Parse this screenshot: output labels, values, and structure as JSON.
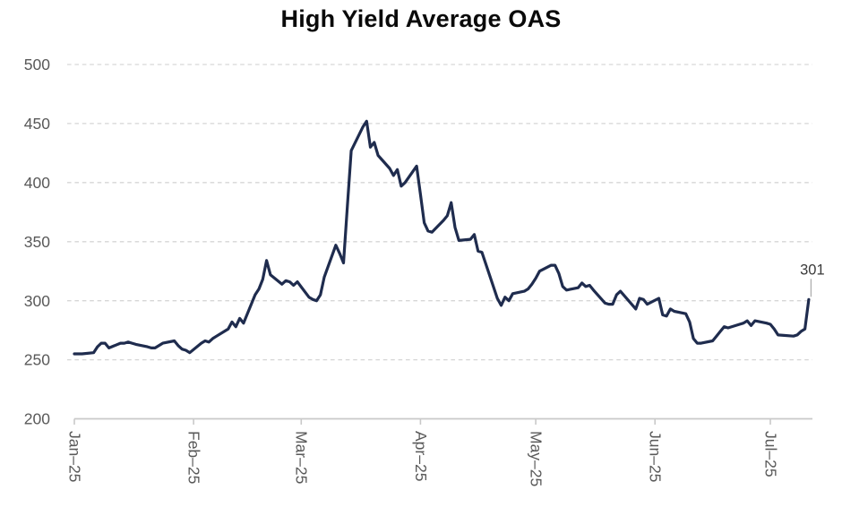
{
  "chart_data": {
    "type": "line",
    "title": "High Yield Average OAS",
    "xlabel": "",
    "ylabel": "",
    "ylim": [
      200,
      500
    ],
    "y_ticks": [
      200,
      250,
      300,
      350,
      400,
      450,
      500
    ],
    "grid": "horizontal-dashed",
    "legend_position": "none",
    "x_ticks": [
      {
        "label": "Jan–25",
        "date": "2025-01-01"
      },
      {
        "label": "Feb–25",
        "date": "2025-02-01"
      },
      {
        "label": "Mar–25",
        "date": "2025-03-01"
      },
      {
        "label": "Apr–25",
        "date": "2025-04-01"
      },
      {
        "label": "May–25",
        "date": "2025-05-01"
      },
      {
        "label": "Jun–25",
        "date": "2025-06-01"
      },
      {
        "label": "Jul–25",
        "date": "2025-07-01"
      }
    ],
    "annotation": {
      "label": "301",
      "date": "2025-07-11",
      "value": 301
    },
    "series": [
      {
        "name": "High Yield Average OAS",
        "dates": [
          "2025-01-01",
          "2025-01-02",
          "2025-01-03",
          "2025-01-06",
          "2025-01-07",
          "2025-01-08",
          "2025-01-09",
          "2025-01-10",
          "2025-01-13",
          "2025-01-14",
          "2025-01-15",
          "2025-01-16",
          "2025-01-17",
          "2025-01-20",
          "2025-01-21",
          "2025-01-22",
          "2025-01-23",
          "2025-01-24",
          "2025-01-27",
          "2025-01-28",
          "2025-01-29",
          "2025-01-30",
          "2025-01-31",
          "2025-02-03",
          "2025-02-04",
          "2025-02-05",
          "2025-02-06",
          "2025-02-07",
          "2025-02-10",
          "2025-02-11",
          "2025-02-12",
          "2025-02-13",
          "2025-02-14",
          "2025-02-17",
          "2025-02-18",
          "2025-02-19",
          "2025-02-20",
          "2025-02-21",
          "2025-02-24",
          "2025-02-25",
          "2025-02-26",
          "2025-02-27",
          "2025-02-28",
          "2025-03-03",
          "2025-03-04",
          "2025-03-05",
          "2025-03-06",
          "2025-03-07",
          "2025-03-10",
          "2025-03-11",
          "2025-03-12",
          "2025-03-13",
          "2025-03-14",
          "2025-03-17",
          "2025-03-18",
          "2025-03-19",
          "2025-03-20",
          "2025-03-21",
          "2025-03-24",
          "2025-03-25",
          "2025-03-26",
          "2025-03-27",
          "2025-03-28",
          "2025-03-31",
          "2025-04-01",
          "2025-04-02",
          "2025-04-03",
          "2025-04-04",
          "2025-04-07",
          "2025-04-08",
          "2025-04-09",
          "2025-04-10",
          "2025-04-11",
          "2025-04-14",
          "2025-04-15",
          "2025-04-16",
          "2025-04-17",
          "2025-04-21",
          "2025-04-22",
          "2025-04-23",
          "2025-04-24",
          "2025-04-25",
          "2025-04-28",
          "2025-04-29",
          "2025-04-30",
          "2025-05-01",
          "2025-05-02",
          "2025-05-05",
          "2025-05-06",
          "2025-05-07",
          "2025-05-08",
          "2025-05-09",
          "2025-05-12",
          "2025-05-13",
          "2025-05-14",
          "2025-05-15",
          "2025-05-16",
          "2025-05-19",
          "2025-05-20",
          "2025-05-21",
          "2025-05-22",
          "2025-05-23",
          "2025-05-27",
          "2025-05-28",
          "2025-05-29",
          "2025-05-30",
          "2025-06-02",
          "2025-06-03",
          "2025-06-04",
          "2025-06-05",
          "2025-06-06",
          "2025-06-09",
          "2025-06-10",
          "2025-06-11",
          "2025-06-12",
          "2025-06-13",
          "2025-06-16",
          "2025-06-17",
          "2025-06-18",
          "2025-06-19",
          "2025-06-20",
          "2025-06-23",
          "2025-06-24",
          "2025-06-25",
          "2025-06-26",
          "2025-06-27",
          "2025-06-30",
          "2025-07-01",
          "2025-07-02",
          "2025-07-03",
          "2025-07-07",
          "2025-07-08",
          "2025-07-09",
          "2025-07-10",
          "2025-07-11"
        ],
        "values": [
          255,
          255,
          255,
          256,
          261,
          264,
          264,
          260,
          264,
          264,
          265,
          264,
          263,
          261,
          260,
          260,
          262,
          264,
          266,
          262,
          259,
          258,
          256,
          264,
          266,
          265,
          268,
          270,
          276,
          282,
          278,
          285,
          281,
          305,
          310,
          318,
          334,
          322,
          314,
          317,
          316,
          313,
          316,
          303,
          301,
          300,
          305,
          320,
          347,
          340,
          332,
          380,
          427,
          447,
          452,
          430,
          434,
          423,
          412,
          406,
          411,
          397,
          400,
          414,
          390,
          366,
          359,
          358,
          368,
          372,
          383,
          362,
          351,
          352,
          356,
          342,
          341,
          302,
          296,
          303,
          300,
          306,
          308,
          310,
          314,
          319,
          325,
          330,
          330,
          323,
          312,
          309,
          311,
          315,
          312,
          313,
          309,
          298,
          297,
          297,
          305,
          308,
          293,
          302,
          301,
          297,
          302,
          288,
          287,
          293,
          291,
          289,
          282,
          268,
          264,
          264,
          266,
          270,
          274,
          278,
          277,
          280,
          281,
          283,
          279,
          283,
          281,
          280,
          276,
          271,
          270,
          271,
          274,
          276,
          301
        ]
      }
    ],
    "colors": {
      "line": "#1f2c4e",
      "grid": "#d6d6d6",
      "axis": "#c9c9c9",
      "tick_label": "#595959",
      "title": "#0a0a0a",
      "annotation_text": "#3a3a3a",
      "annotation_callout": "#ababab",
      "background": "#ffffff"
    }
  }
}
